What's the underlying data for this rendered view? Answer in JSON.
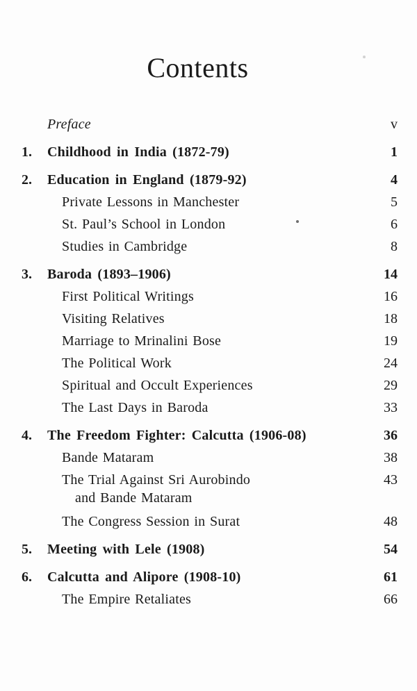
{
  "title": "Contents",
  "colors": {
    "background": "#fdfdfd",
    "text": "#1a1a1a"
  },
  "toc": {
    "preface": {
      "title": "Preface",
      "page": "v"
    },
    "rows": [
      {
        "type": "chapter",
        "num": "1.",
        "title": "Childhood in India (1872-79)",
        "page": "1"
      },
      {
        "type": "chapter",
        "num": "2.",
        "title": "Education in England (1879-92)",
        "page": "4"
      },
      {
        "type": "sub",
        "title": "Private Lessons in Manchester",
        "page": "5"
      },
      {
        "type": "sub",
        "title": "St. Paul’s School in London",
        "page": "6"
      },
      {
        "type": "sub",
        "title": "Studies in Cambridge",
        "page": "8"
      },
      {
        "type": "chapter",
        "num": "3.",
        "title": "Baroda (1893–1906)",
        "page": "14"
      },
      {
        "type": "sub",
        "title": "First Political Writings",
        "page": "16"
      },
      {
        "type": "sub",
        "title": "Visiting Relatives",
        "page": "18"
      },
      {
        "type": "sub",
        "title": "Marriage to Mrinalini Bose",
        "page": "19"
      },
      {
        "type": "sub",
        "title": "The Political Work",
        "page": "24"
      },
      {
        "type": "sub",
        "title": "Spiritual and Occult Experiences",
        "page": "29"
      },
      {
        "type": "sub",
        "title": "The Last Days in Baroda",
        "page": "33"
      },
      {
        "type": "chapter",
        "num": "4.",
        "title": "The Freedom Fighter: Calcutta (1906-08)",
        "page": "36"
      },
      {
        "type": "sub",
        "title": "Bande Mataram",
        "page": "38"
      },
      {
        "type": "sub",
        "title": "The Trial Against Sri Aurobindo",
        "title_line2": "and Bande Mataram",
        "page": "43"
      },
      {
        "type": "sub",
        "title": "The Congress Session in Surat",
        "page": "48"
      },
      {
        "type": "chapter",
        "num": "5.",
        "title": "Meeting with Lele (1908)",
        "page": "54"
      },
      {
        "type": "chapter",
        "num": "6.",
        "title": "Calcutta and Alipore (1908-10)",
        "page": "61"
      },
      {
        "type": "sub",
        "title": "The Empire Retaliates",
        "page": "66"
      }
    ]
  }
}
